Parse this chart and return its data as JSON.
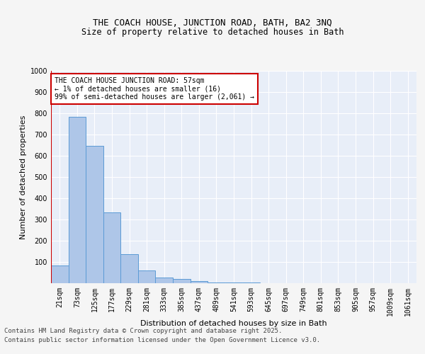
{
  "title1": "THE COACH HOUSE, JUNCTION ROAD, BATH, BA2 3NQ",
  "title2": "Size of property relative to detached houses in Bath",
  "xlabel": "Distribution of detached houses by size in Bath",
  "ylabel": "Number of detached properties",
  "categories": [
    "21sqm",
    "73sqm",
    "125sqm",
    "177sqm",
    "229sqm",
    "281sqm",
    "333sqm",
    "385sqm",
    "437sqm",
    "489sqm",
    "541sqm",
    "593sqm",
    "645sqm",
    "697sqm",
    "749sqm",
    "801sqm",
    "853sqm",
    "905sqm",
    "957sqm",
    "1009sqm",
    "1061sqm"
  ],
  "values": [
    83,
    783,
    648,
    335,
    137,
    60,
    28,
    20,
    10,
    5,
    3,
    2,
    1,
    1,
    1,
    0,
    0,
    0,
    0,
    0,
    0
  ],
  "bar_color": "#aec6e8",
  "bar_edge_color": "#5b9bd5",
  "vline_color": "#cc0000",
  "annotation_text": "THE COACH HOUSE JUNCTION ROAD: 57sqm\n← 1% of detached houses are smaller (16)\n99% of semi-detached houses are larger (2,061) →",
  "annotation_box_color": "#ffffff",
  "annotation_box_edge": "#cc0000",
  "footer1": "Contains HM Land Registry data © Crown copyright and database right 2025.",
  "footer2": "Contains public sector information licensed under the Open Government Licence v3.0.",
  "ylim": [
    0,
    1000
  ],
  "yticks": [
    0,
    100,
    200,
    300,
    400,
    500,
    600,
    700,
    800,
    900,
    1000
  ],
  "bg_color": "#e8eef8",
  "grid_color": "#ffffff",
  "title_fontsize": 9,
  "subtitle_fontsize": 8.5,
  "axis_label_fontsize": 8,
  "tick_fontsize": 7,
  "footer_fontsize": 6.5,
  "annotation_fontsize": 7
}
